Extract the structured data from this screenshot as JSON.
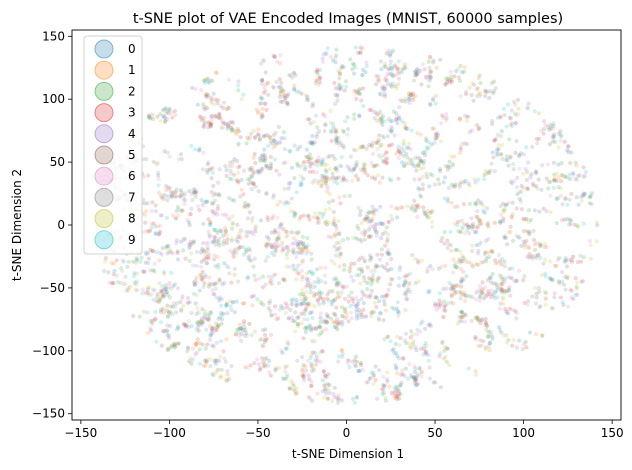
{
  "chart_data": {
    "type": "scatter",
    "title": "t-SNE plot of VAE Encoded Images (MNIST, 60000 samples)",
    "xlabel": "t-SNE Dimension 1",
    "ylabel": "t-SNE Dimension 2",
    "xlim": [
      -155,
      155
    ],
    "ylim": [
      -155,
      155
    ],
    "xticks": [
      "−150",
      "−100",
      "−50",
      "0",
      "50",
      "100",
      "150"
    ],
    "xtick_values": [
      -150,
      -100,
      -50,
      0,
      50,
      100,
      150
    ],
    "yticks": [
      "−150",
      "−100",
      "−50",
      "0",
      "50",
      "100",
      "150"
    ],
    "ytick_values": [
      -150,
      -100,
      -50,
      0,
      50,
      100,
      150
    ],
    "grid": false,
    "legend_position": "top-left",
    "point_alpha": 0.2,
    "cloud_shape": "roughly circular cloud of overlapping points, radius about 140, with spiky filament-like clusters near the rim",
    "series": [
      {
        "name": "0",
        "color": "#1f77b4"
      },
      {
        "name": "1",
        "color": "#ff7f0e"
      },
      {
        "name": "2",
        "color": "#2ca02c"
      },
      {
        "name": "3",
        "color": "#d62728"
      },
      {
        "name": "4",
        "color": "#9467bd"
      },
      {
        "name": "5",
        "color": "#8c564b"
      },
      {
        "name": "6",
        "color": "#e377c2"
      },
      {
        "name": "7",
        "color": "#7f7f7f"
      },
      {
        "name": "8",
        "color": "#bcbd22"
      },
      {
        "name": "9",
        "color": "#17becf"
      }
    ]
  }
}
